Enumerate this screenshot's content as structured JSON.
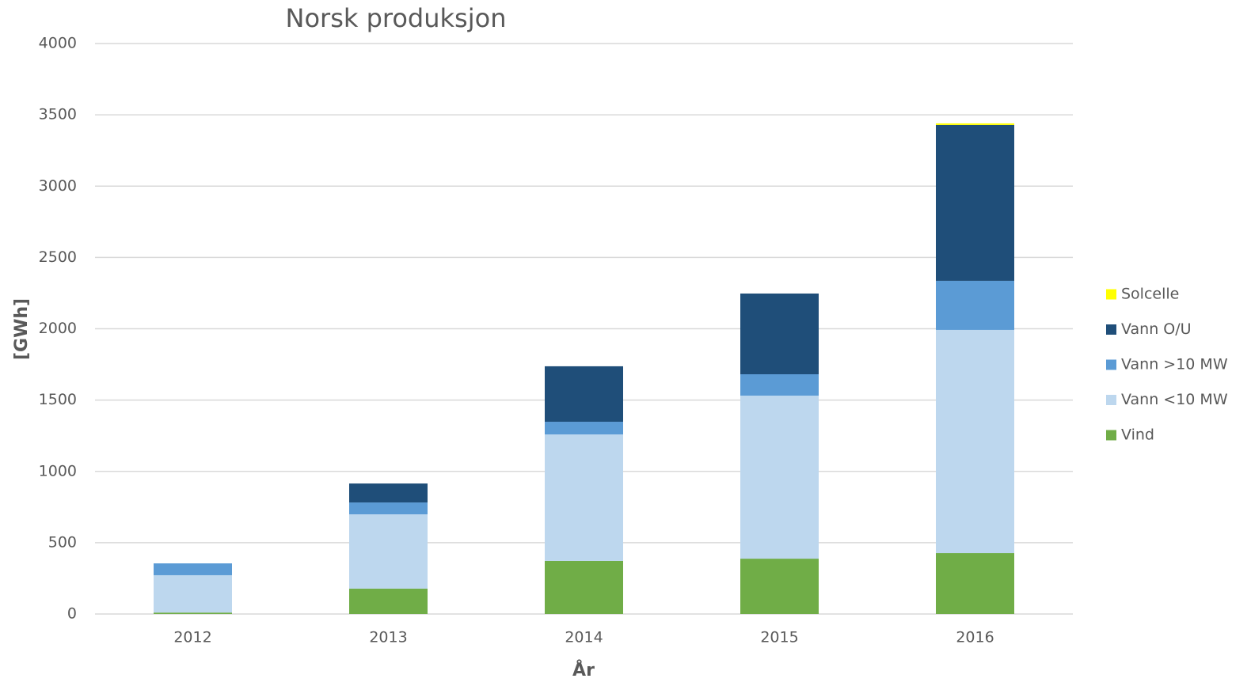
{
  "chart_data": {
    "type": "stacked_bar",
    "title": "Norsk produksjon",
    "x_label": "År",
    "y_label": "[GWh]",
    "categories": [
      "2012",
      "2013",
      "2014",
      "2015",
      "2016"
    ],
    "series": [
      {
        "name": "Vind",
        "color": "#70ad47",
        "values": [
          10,
          178,
          372,
          388,
          427
        ]
      },
      {
        "name": "Vann <10 MW",
        "color": "#bdd7ee",
        "values": [
          262,
          521,
          887,
          1143,
          1565
        ]
      },
      {
        "name": "Vann >10 MW",
        "color": "#5b9bd5",
        "values": [
          83,
          83,
          89,
          150,
          344
        ]
      },
      {
        "name": "Vann O/U",
        "color": "#1f4e79",
        "values": [
          0,
          133,
          389,
          566,
          1093
        ]
      },
      {
        "name": "Solcelle",
        "color": "#ffff00",
        "values": [
          0,
          0,
          0,
          0,
          11
        ]
      }
    ],
    "ylim": [
      0,
      4000
    ],
    "yticks": [
      0,
      500,
      1000,
      1500,
      2000,
      2500,
      3000,
      3500,
      4000
    ],
    "grid": true,
    "legend": "right"
  }
}
